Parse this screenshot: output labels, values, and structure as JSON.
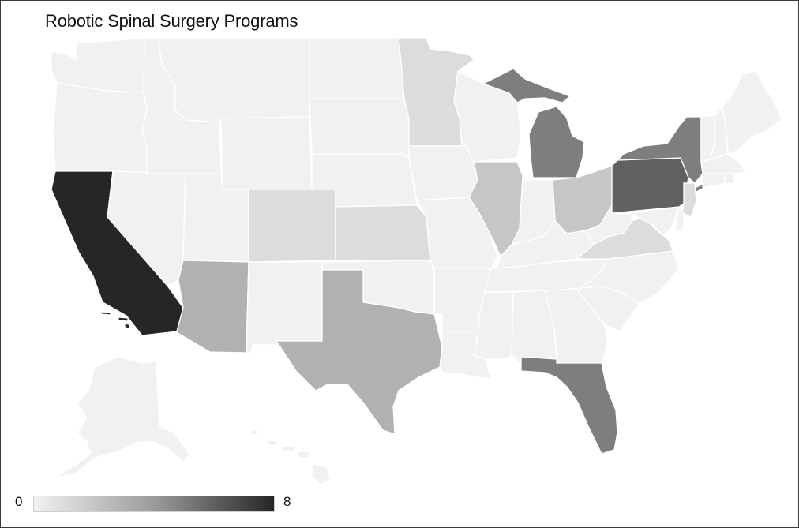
{
  "title": "Robotic Spinal Surgery Programs",
  "legend": {
    "min": "0",
    "max": "8"
  },
  "colors": {
    "low": "#f1f1f1",
    "mid": "#9b9b9b",
    "high": "#262626",
    "border": "#ffffff"
  },
  "states": [
    {
      "id": "WA",
      "value": 0
    },
    {
      "id": "OR",
      "value": 0
    },
    {
      "id": "CA",
      "value": 8
    },
    {
      "id": "NV",
      "value": 0
    },
    {
      "id": "ID",
      "value": 0
    },
    {
      "id": "MT",
      "value": 0
    },
    {
      "id": "WY",
      "value": 0
    },
    {
      "id": "UT",
      "value": 0
    },
    {
      "id": "AZ",
      "value": 3
    },
    {
      "id": "CO",
      "value": 1
    },
    {
      "id": "NM",
      "value": 0
    },
    {
      "id": "ND",
      "value": 0
    },
    {
      "id": "SD",
      "value": 0
    },
    {
      "id": "NE",
      "value": 0
    },
    {
      "id": "KS",
      "value": 1
    },
    {
      "id": "OK",
      "value": 0
    },
    {
      "id": "TX",
      "value": 3
    },
    {
      "id": "MN",
      "value": 1
    },
    {
      "id": "IA",
      "value": 0
    },
    {
      "id": "MO",
      "value": 0
    },
    {
      "id": "AR",
      "value": 0
    },
    {
      "id": "LA",
      "value": 0
    },
    {
      "id": "WI",
      "value": 0
    },
    {
      "id": "IL",
      "value": 2
    },
    {
      "id": "MI-L",
      "value": 5
    },
    {
      "id": "MI-U",
      "value": 5
    },
    {
      "id": "IN",
      "value": 0
    },
    {
      "id": "OH",
      "value": 2
    },
    {
      "id": "KY",
      "value": 0
    },
    {
      "id": "TN",
      "value": 0
    },
    {
      "id": "MS",
      "value": 0
    },
    {
      "id": "AL",
      "value": 0
    },
    {
      "id": "GA",
      "value": 0
    },
    {
      "id": "FL",
      "value": 5
    },
    {
      "id": "SC",
      "value": 0
    },
    {
      "id": "NC",
      "value": 0
    },
    {
      "id": "VA",
      "value": 1
    },
    {
      "id": "WV",
      "value": 0
    },
    {
      "id": "PA",
      "value": 6
    },
    {
      "id": "NY",
      "value": 5
    },
    {
      "id": "NJ",
      "value": 1
    },
    {
      "id": "MD",
      "value": 0
    },
    {
      "id": "DE",
      "value": 0
    },
    {
      "id": "VT",
      "value": 0
    },
    {
      "id": "NH",
      "value": 0
    },
    {
      "id": "ME",
      "value": 0
    },
    {
      "id": "MA",
      "value": 0
    },
    {
      "id": "CT",
      "value": 0
    },
    {
      "id": "RI",
      "value": 0
    },
    {
      "id": "AK",
      "value": 0
    },
    {
      "id": "HI",
      "value": 0
    }
  ]
}
